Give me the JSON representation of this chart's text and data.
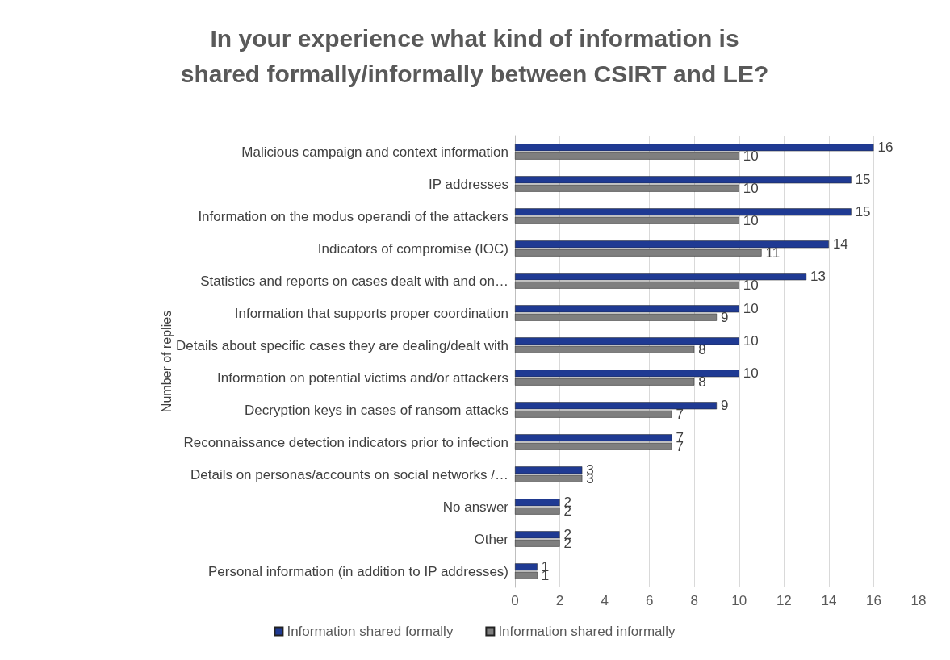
{
  "chart_data": {
    "type": "bar",
    "orientation": "horizontal",
    "title": "In your experience what kind of information is\nshared formally/informally between CSIRT and LE?",
    "ylabel": "Number of replies",
    "categories": [
      "Malicious campaign and context information",
      "IP addresses",
      "Information on the modus operandi of the attackers",
      "Indicators of compromise (IOC)",
      "Statistics and reports on cases dealt with and on…",
      "Information that supports proper coordination",
      "Details about specific cases they are dealing/dealt with",
      "Information on potential victims and/or attackers",
      "Decryption keys in cases of ransom attacks",
      "Reconnaissance detection indicators prior to infection",
      "Details on personas/accounts on social networks /…",
      "No answer",
      "Other",
      "Personal information (in addition to IP addresses)"
    ],
    "series": [
      {
        "name": "Information shared formally",
        "color": "#1f3a93",
        "values": [
          16,
          15,
          15,
          14,
          13,
          10,
          10,
          10,
          9,
          7,
          3,
          2,
          2,
          1
        ]
      },
      {
        "name": "Information shared informally",
        "color": "#7f7f7f",
        "values": [
          10,
          10,
          10,
          11,
          10,
          9,
          8,
          8,
          7,
          7,
          3,
          2,
          2,
          1
        ]
      }
    ],
    "xlim": [
      0,
      18
    ],
    "xticks": [
      0,
      2,
      4,
      6,
      8,
      10,
      12,
      14,
      16,
      18
    ],
    "grid": "x",
    "legend": "bottom",
    "data_labels": true
  }
}
